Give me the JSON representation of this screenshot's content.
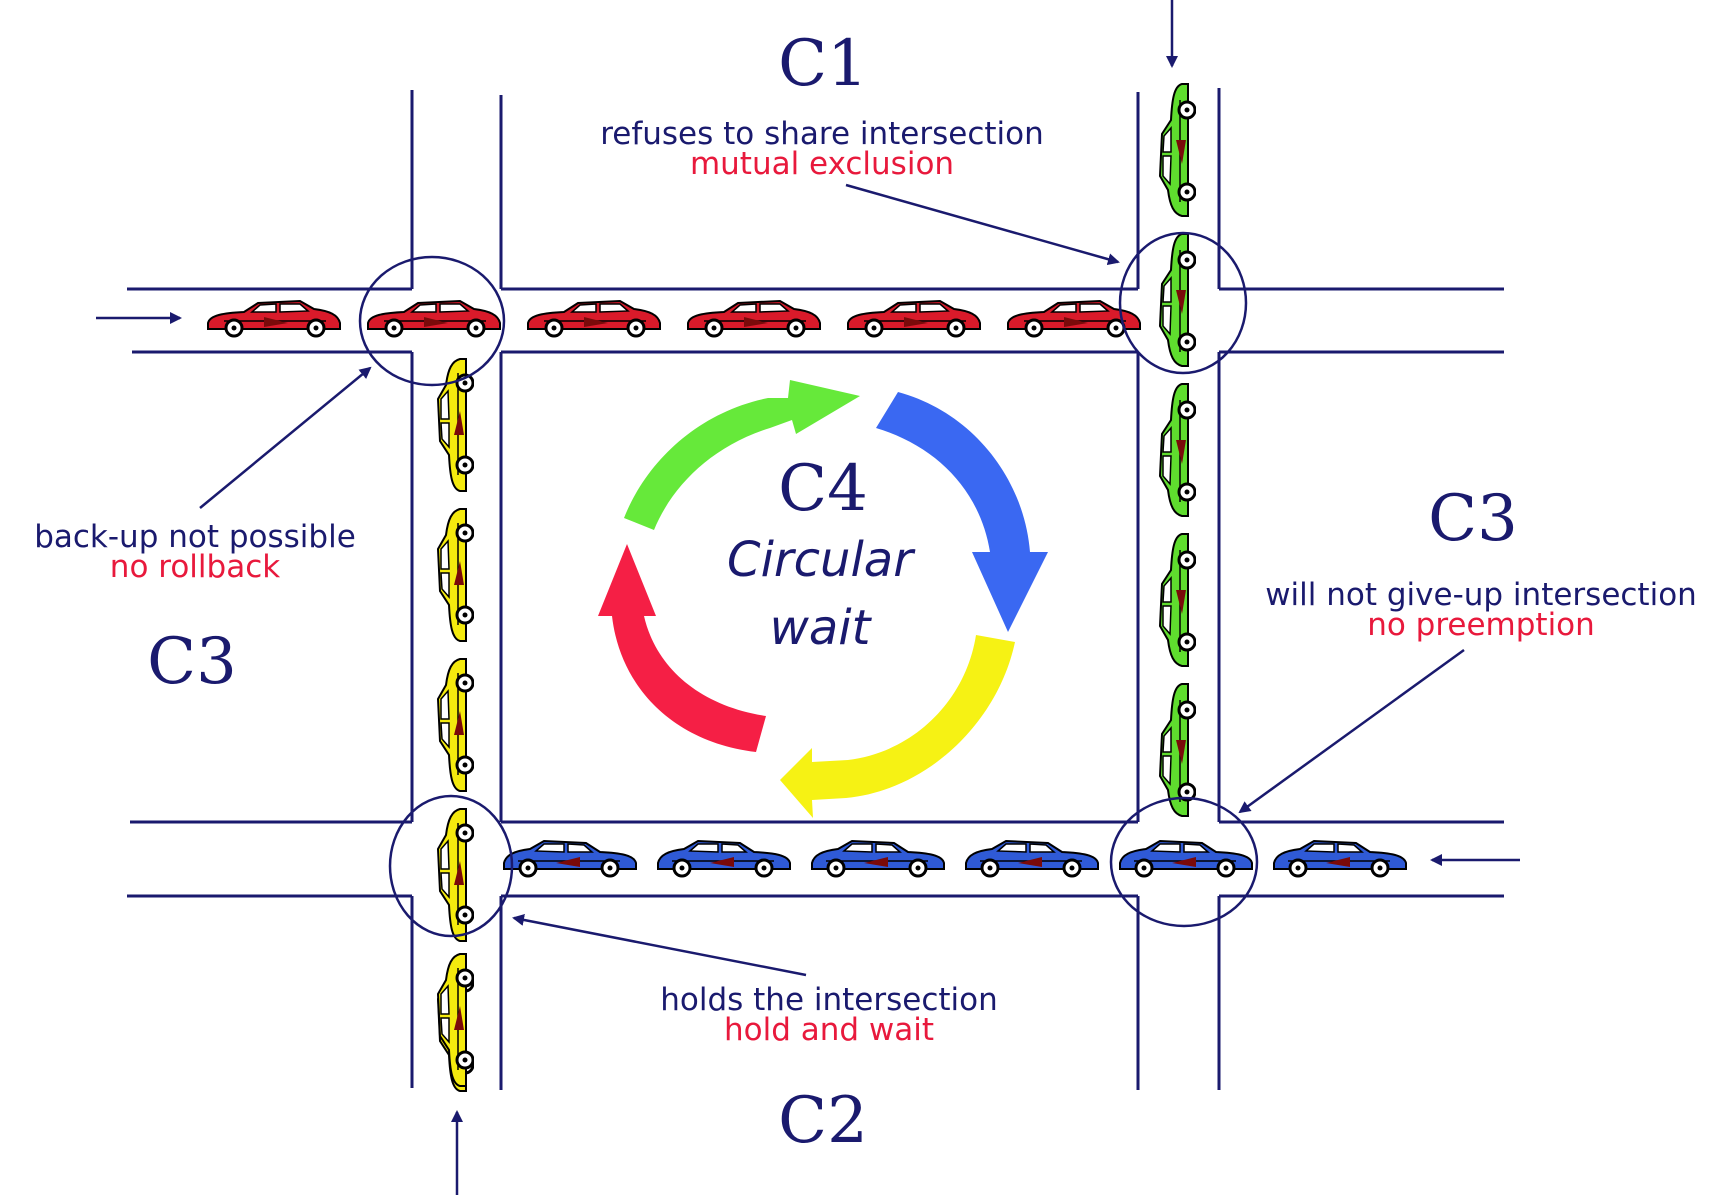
{
  "colors": {
    "navy": "#1a1a6e",
    "accent_red": "#e8193c",
    "car_red": "#d91a2a",
    "car_green": "#5fdc2e",
    "car_yellow": "#f4ea0e",
    "car_blue": "#2f5ad6",
    "arrow_green": "#66e93a",
    "arrow_blue": "#3a68f2",
    "arrow_yellow": "#f6f214",
    "arrow_red": "#f51f45"
  },
  "headings": {
    "c1": "C1",
    "c2": "C2",
    "c3_left": "C3",
    "c3_right": "C3",
    "c4": "C4"
  },
  "center": {
    "line1": "Circular",
    "line2": "wait"
  },
  "annotations": {
    "mutual": {
      "text": "refuses to share intersection",
      "condition": "mutual exclusion"
    },
    "rollback": {
      "text": "back-up not possible",
      "condition": "no rollback"
    },
    "preemption": {
      "text": "will not give-up intersection",
      "condition": "no preemption"
    },
    "hold": {
      "text": "holds the intersection",
      "condition": "hold and wait"
    }
  },
  "queues": {
    "red_cars": 6,
    "green_cars": 5,
    "yellow_cars": 5,
    "blue_cars": 6
  }
}
